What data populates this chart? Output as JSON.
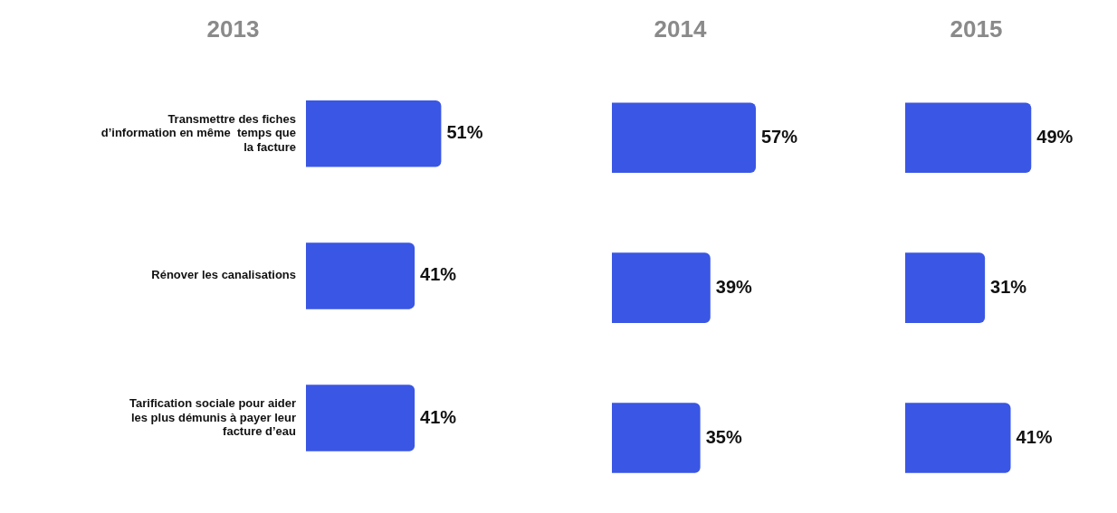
{
  "chart_data": [
    {
      "type": "bar",
      "orientation": "horizontal",
      "title": "2013",
      "categories": [
        "Transmettre des fiches d’information en même  temps que la facture",
        "Rénover les canalisations",
        "Tarification sociale pour aider les plus démunis à payer leur facture d’eau"
      ],
      "values": [
        51,
        41,
        41
      ],
      "value_labels": [
        "51%",
        "41%",
        "41%"
      ],
      "color": "#3a56e4",
      "tick_labels": "y"
    },
    {
      "type": "bar",
      "orientation": "horizontal",
      "title": "2014",
      "categories": [
        null,
        null,
        null
      ],
      "values": [
        57,
        39,
        35
      ],
      "value_labels": [
        "57%",
        "39%",
        "35%"
      ],
      "color": "#3a56e4",
      "tick_labels": false
    },
    {
      "type": "bar",
      "orientation": "horizontal",
      "title": "2015",
      "categories": [
        null,
        null,
        null
      ],
      "values": [
        49,
        31,
        41
      ],
      "value_labels": [
        "49%",
        "31%",
        "41%"
      ],
      "color": "#3a56e4",
      "tick_labels": false
    }
  ]
}
